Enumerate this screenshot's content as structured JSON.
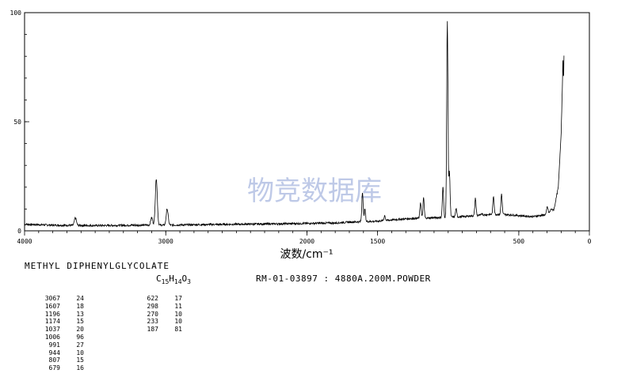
{
  "chart_data": {
    "type": "line",
    "xlabel": "波数/cm⁻¹",
    "xlim": [
      4000,
      0
    ],
    "ylim": [
      0,
      100
    ],
    "x_ticks": [
      {
        "value": 4000,
        "label": "4000"
      },
      {
        "value": 3000,
        "label": "3000"
      },
      {
        "value": 2000,
        "label": "2000"
      },
      {
        "value": 1500,
        "label": "1500"
      },
      {
        "value": 500,
        "label": "500"
      },
      {
        "value": 0,
        "label": "0"
      }
    ],
    "y_ticks": [
      {
        "value": 0,
        "label": "0"
      },
      {
        "value": 50,
        "label": "50"
      },
      {
        "value": 100,
        "label": "100"
      }
    ],
    "grid": false,
    "line_color": "#000000",
    "baseline": [
      [
        4000,
        3
      ],
      [
        3800,
        2.6
      ],
      [
        3500,
        2.4
      ],
      [
        3200,
        2.6
      ],
      [
        3000,
        2.6
      ],
      [
        2800,
        2.8
      ],
      [
        2500,
        3
      ],
      [
        2200,
        3.2
      ],
      [
        2000,
        3.4
      ],
      [
        1800,
        3.6
      ],
      [
        1700,
        4
      ],
      [
        1500,
        4.4
      ],
      [
        1400,
        5
      ],
      [
        1300,
        5.5
      ],
      [
        1200,
        5.8
      ],
      [
        1100,
        6
      ],
      [
        1000,
        6.2
      ],
      [
        900,
        6.5
      ],
      [
        800,
        7
      ],
      [
        700,
        7.5
      ],
      [
        600,
        7.5
      ],
      [
        500,
        7
      ],
      [
        400,
        6.5
      ],
      [
        300,
        7.5
      ],
      [
        250,
        10
      ],
      [
        220,
        20
      ],
      [
        200,
        45
      ],
      [
        190,
        70
      ],
      [
        187,
        81
      ],
      [
        183,
        68
      ],
      [
        180,
        80
      ]
    ],
    "peaks": [
      {
        "x": 3067,
        "y": 24
      },
      {
        "x": 3100,
        "y": 6
      },
      {
        "x": 2990,
        "y": 10
      },
      {
        "x": 3640,
        "y": 6
      },
      {
        "x": 1607,
        "y": 18
      },
      {
        "x": 1590,
        "y": 10
      },
      {
        "x": 1450,
        "y": 7
      },
      {
        "x": 1196,
        "y": 13
      },
      {
        "x": 1174,
        "y": 15
      },
      {
        "x": 1037,
        "y": 20
      },
      {
        "x": 1006,
        "y": 96
      },
      {
        "x": 991,
        "y": 27
      },
      {
        "x": 944,
        "y": 10
      },
      {
        "x": 807,
        "y": 15
      },
      {
        "x": 760,
        "y": 8
      },
      {
        "x": 679,
        "y": 16
      },
      {
        "x": 622,
        "y": 17
      },
      {
        "x": 420,
        "y": 5
      },
      {
        "x": 298,
        "y": 11
      },
      {
        "x": 270,
        "y": 10
      },
      {
        "x": 233,
        "y": 10
      }
    ],
    "peak_list": [
      {
        "wn": "3067",
        "int": "24"
      },
      {
        "wn": "1607",
        "int": "18"
      },
      {
        "wn": "1196",
        "int": "13"
      },
      {
        "wn": "1174",
        "int": "15"
      },
      {
        "wn": "1037",
        "int": "20"
      },
      {
        "wn": "1006",
        "int": "96"
      },
      {
        "wn": "991",
        "int": "27"
      },
      {
        "wn": "944",
        "int": "10"
      },
      {
        "wn": "807",
        "int": "15"
      },
      {
        "wn": "679",
        "int": "16"
      },
      {
        "wn": "622",
        "int": "17"
      },
      {
        "wn": "298",
        "int": "11"
      },
      {
        "wn": "270",
        "int": "10"
      },
      {
        "wn": "233",
        "int": "10"
      },
      {
        "wn": "187",
        "int": "81"
      }
    ]
  },
  "watermark": "物竞数据库",
  "compound": {
    "name": "METHYL DIPHENYLGLYCOLATE",
    "formula_c": "C",
    "formula_c_n": "15",
    "formula_h": "H",
    "formula_h_n": "14",
    "formula_o": "O",
    "formula_o_n": "3"
  },
  "sample_info": "RM-01-03897 : 4880A.200M.POWDER"
}
